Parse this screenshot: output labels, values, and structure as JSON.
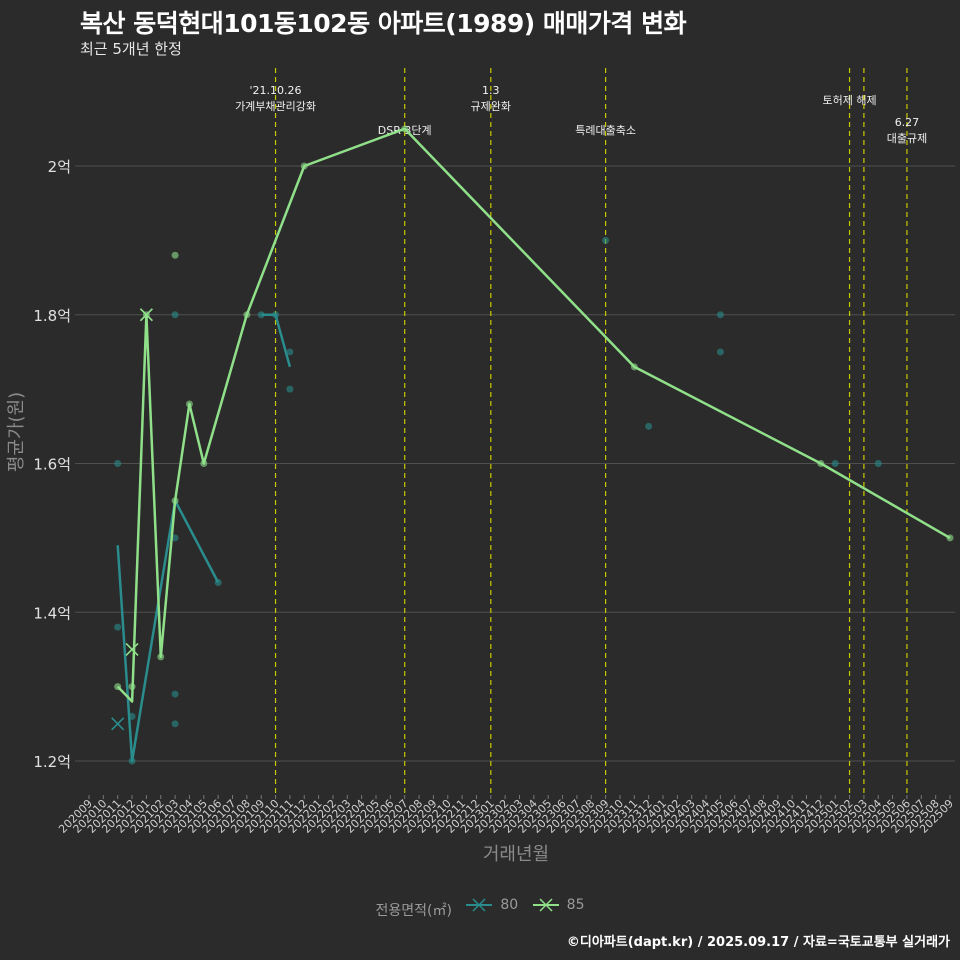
{
  "title": "복산 동덕현대101동102동 아파트(1989) 매매가격 변화",
  "subtitle": "최근 5개년 한정",
  "caption": "©디아파트(dapt.kr) / 2025.09.17 / 자료=국토교통부 실거래가",
  "colors": {
    "background": "#2b2b2b",
    "grid": "#4f4f4f",
    "event_line": "#c8c800",
    "series_80": "#2a8c8c",
    "series_85": "#90e08a"
  },
  "chart_data": {
    "type": "line",
    "xlabel": "거래년월",
    "ylabel": "평균가(원)",
    "ylim": [
      1.16,
      2.13
    ],
    "y_ticks": [
      {
        "value": 1.2,
        "label": "1.2억"
      },
      {
        "value": 1.4,
        "label": "1.4억"
      },
      {
        "value": 1.6,
        "label": "1.6억"
      },
      {
        "value": 1.8,
        "label": "1.8억"
      },
      {
        "value": 2.0,
        "label": "2억"
      }
    ],
    "x_categories": [
      "202009",
      "202010",
      "202011",
      "202012",
      "202101",
      "202102",
      "202103",
      "202104",
      "202105",
      "202106",
      "202107",
      "202108",
      "202109",
      "202110",
      "202111",
      "202112",
      "202201",
      "202202",
      "202203",
      "202204",
      "202205",
      "202206",
      "202207",
      "202208",
      "202209",
      "202210",
      "202211",
      "202212",
      "202301",
      "202302",
      "202303",
      "202304",
      "202305",
      "202306",
      "202307",
      "202308",
      "202309",
      "202310",
      "202311",
      "202312",
      "202401",
      "202402",
      "202403",
      "202404",
      "202405",
      "202406",
      "202407",
      "202408",
      "202409",
      "202410",
      "202411",
      "202412",
      "202501",
      "202502",
      "202503",
      "202504",
      "202505",
      "202506",
      "202507",
      "202508",
      "202509"
    ],
    "events": [
      {
        "month": "202110",
        "label": [
          "'21.10.26",
          "가계부채관리강화"
        ],
        "tier": "high"
      },
      {
        "month": "202207",
        "label": [
          "DSR 3단계"
        ],
        "tier": "mid"
      },
      {
        "month": "202301",
        "label": [
          "1.3",
          "규제완화"
        ],
        "tier": "high"
      },
      {
        "month": "202309",
        "label": [
          "특례대출축소"
        ],
        "tier": "mid"
      },
      {
        "month": "202502",
        "label": [
          "토허제 해제"
        ],
        "tier": "top"
      },
      {
        "month": "202503",
        "label": [],
        "tier": "top"
      },
      {
        "month": "202506",
        "label": [
          "6.27",
          "대출규제"
        ],
        "tier": "low"
      }
    ],
    "legend_title": "전용면적(㎡)",
    "series": [
      {
        "name": "80",
        "color": "#2a8c8c",
        "line": [
          [
            "202011",
            1.49
          ],
          [
            "202012",
            1.2
          ],
          [
            "202103",
            1.55
          ],
          [
            "202106",
            1.44
          ]
        ],
        "line2": [
          [
            "202109",
            1.8
          ],
          [
            "202110",
            1.8
          ],
          [
            "202111",
            1.73
          ]
        ],
        "points": [
          [
            "202011",
            1.6
          ],
          [
            "202011",
            1.38
          ],
          [
            "202012",
            1.26
          ],
          [
            "202012",
            1.2
          ],
          [
            "202103",
            1.8
          ],
          [
            "202103",
            1.5
          ],
          [
            "202103",
            1.29
          ],
          [
            "202103",
            1.25
          ],
          [
            "202106",
            1.44
          ],
          [
            "202109",
            1.8
          ],
          [
            "202110",
            1.8
          ],
          [
            "202111",
            1.75
          ],
          [
            "202111",
            1.7
          ],
          [
            "202309",
            1.9
          ],
          [
            "202312",
            1.65
          ],
          [
            "202405",
            1.8
          ],
          [
            "202405",
            1.75
          ],
          [
            "202501",
            1.6
          ],
          [
            "202504",
            1.6
          ]
        ],
        "crosses": [
          [
            "202011",
            1.25
          ]
        ]
      },
      {
        "name": "85",
        "color": "#90e08a",
        "line": [
          [
            "202011",
            1.3
          ],
          [
            "202012",
            1.28
          ],
          [
            "202101",
            1.8
          ],
          [
            "202102",
            1.34
          ],
          [
            "202103",
            1.55
          ],
          [
            "202104",
            1.68
          ],
          [
            "202105",
            1.6
          ],
          [
            "202108",
            1.8
          ],
          [
            "202112",
            2.0
          ],
          [
            "202207",
            2.05
          ],
          [
            "202311",
            1.73
          ],
          [
            "202412",
            1.6
          ],
          [
            "202509",
            1.5
          ]
        ],
        "points": [
          [
            "202011",
            1.3
          ],
          [
            "202012",
            1.3
          ],
          [
            "202101",
            1.8
          ],
          [
            "202102",
            1.34
          ],
          [
            "202103",
            1.88
          ],
          [
            "202103",
            1.55
          ],
          [
            "202104",
            1.68
          ],
          [
            "202105",
            1.6
          ],
          [
            "202108",
            1.8
          ],
          [
            "202112",
            2.0
          ],
          [
            "202207",
            2.05
          ],
          [
            "202311",
            1.73
          ],
          [
            "202412",
            1.6
          ],
          [
            "202509",
            1.5
          ]
        ],
        "crosses": [
          [
            "202012",
            1.35
          ],
          [
            "202101",
            1.8
          ]
        ]
      }
    ]
  }
}
